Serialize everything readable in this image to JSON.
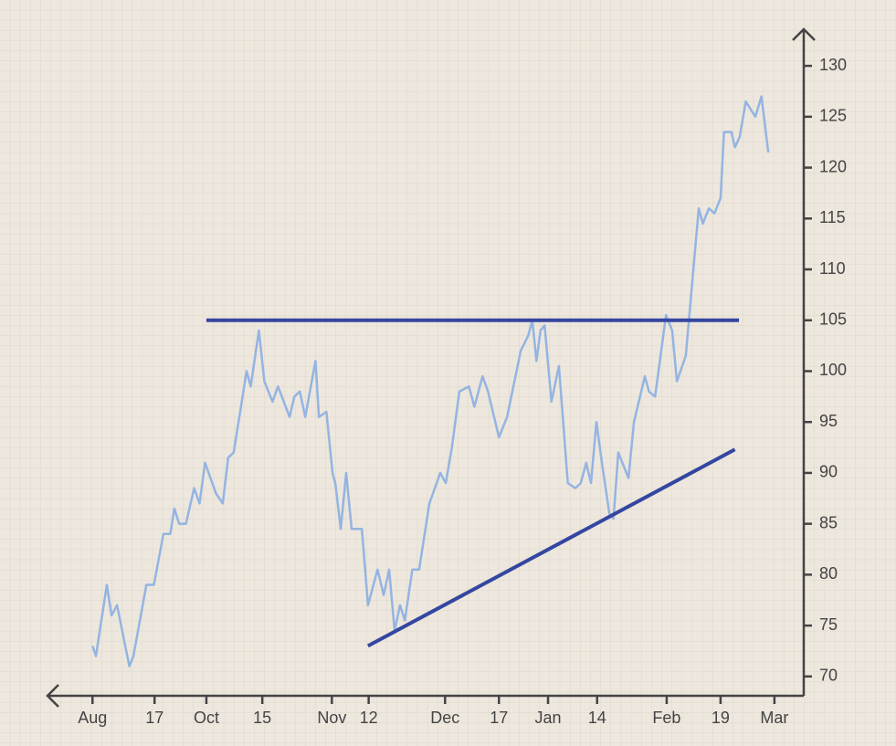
{
  "chart_data": {
    "type": "line",
    "x": [
      0,
      0.5,
      2.1,
      2.8,
      3.6,
      5.4,
      6.0,
      7.9,
      8.4,
      9.0,
      10.4,
      11.4,
      12.0,
      12.7,
      13.7,
      14.9,
      15.7,
      16.5,
      18.1,
      19.1,
      19.9,
      20.7,
      22.6,
      23.2,
      24.4,
      25.2,
      26.4,
      27.2,
      28.9,
      29.6,
      30.4,
      31.2,
      32.7,
      33.2,
      34.3,
      35.2,
      35.6,
      36.4,
      37.2,
      38.0,
      39.5,
      40.4,
      41.8,
      42.7,
      43.5,
      44.3,
      45.1,
      45.8,
      46.9,
      47.9,
      49.4,
      51.0,
      51.8,
      52.7,
      53.8,
      55.2,
      56.0,
      57.2,
      58.0,
      59.6,
      60.8,
      62.8,
      63.9,
      64.5,
      65.1,
      65.7,
      66.3,
      67.3,
      68.4,
      69.7,
      70.8,
      71.6,
      72.4,
      73.1,
      73.9,
      74.7,
      75.8,
      76.4,
      77.1,
      78.6,
      79.4,
      81.0,
      81.6,
      82.5,
      84.1,
      85.0,
      85.7,
      87.0,
      88.9,
      89.5,
      90.4,
      91.2,
      92.1,
      92.6,
      93.7,
      94.2,
      94.9,
      95.8,
      97.2,
      98.1,
      99.1
    ],
    "values": [
      73,
      72,
      79,
      76,
      77,
      71,
      72,
      79,
      79,
      79,
      84,
      84,
      86.5,
      85,
      85,
      88.5,
      87,
      91,
      88,
      87,
      91.5,
      92,
      100,
      98.5,
      104,
      99,
      97,
      98.5,
      95.5,
      97.5,
      98,
      95.5,
      101,
      95.5,
      96,
      90,
      89,
      84.5,
      90,
      84.5,
      84.5,
      77,
      80.5,
      78,
      80.5,
      74.5,
      77,
      75.5,
      80.5,
      80.5,
      87,
      90,
      89,
      92.5,
      98,
      98.5,
      96.5,
      99.5,
      98,
      93.5,
      95.5,
      102,
      103.5,
      105,
      101,
      104,
      104.5,
      97,
      100.5,
      89,
      88.5,
      89,
      91,
      89,
      95,
      91,
      86,
      85.5,
      92,
      89.5,
      95,
      99.5,
      98,
      97.5,
      105.5,
      104,
      99,
      101.5,
      116,
      114.5,
      116,
      115.5,
      117,
      123.5,
      123.5,
      122,
      123,
      126.5,
      125,
      127,
      121.5
    ],
    "color": "#94b4e2",
    "trendlines": [
      {
        "x": [
          16.7,
          94.8
        ],
        "values": [
          105,
          105
        ],
        "color": "#3446a0"
      },
      {
        "x": [
          40.4,
          94.2
        ],
        "values": [
          73,
          92.3
        ],
        "color": "#3446a0"
      }
    ],
    "xlim": [
      -6.6,
      104.3
    ],
    "xticks": [
      {
        "value": 0,
        "label": "Aug"
      },
      {
        "value": 9.1,
        "label": "17"
      },
      {
        "value": 16.7,
        "label": "Oct"
      },
      {
        "value": 24.9,
        "label": "15"
      },
      {
        "value": 35.1,
        "label": "Nov"
      },
      {
        "value": 40.5,
        "label": "12"
      },
      {
        "value": 51.7,
        "label": "Dec"
      },
      {
        "value": 59.6,
        "label": "17"
      },
      {
        "value": 66.8,
        "label": "Jan"
      },
      {
        "value": 74.0,
        "label": "14"
      },
      {
        "value": 84.2,
        "label": "Feb"
      },
      {
        "value": 92.1,
        "label": "19"
      },
      {
        "value": 100,
        "label": "Mar"
      }
    ],
    "ylim": [
      68.1,
      133.6
    ],
    "yticks": [
      70,
      75,
      80,
      85,
      90,
      95,
      100,
      105,
      110,
      115,
      120,
      125,
      130
    ]
  }
}
